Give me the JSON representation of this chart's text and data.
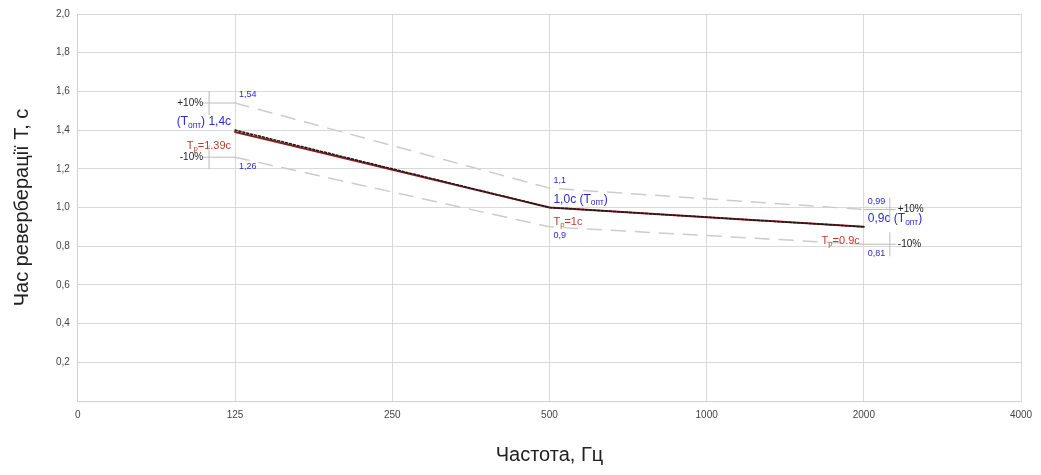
{
  "chart_data": {
    "type": "line",
    "xlabel": "Частота, Гц",
    "ylabel": "Час реверберації T, с",
    "categories": [
      "0",
      "125",
      "250",
      "500",
      "1000",
      "2000",
      "4000"
    ],
    "series": [
      {
        "color": "#8b1a1a",
        "values": [
          null,
          1.39,
          null,
          1,
          null,
          0.9,
          null
        ],
        "value_labels": [
          null,
          "T$_{р}$=1.39с",
          null,
          "T$_{р}$=1с",
          null,
          "T$_{р}$=0.9с",
          null
        ]
      },
      {
        "color": "#1a1a1a",
        "line_style": "dotted",
        "values": [
          null,
          1.4,
          null,
          1.0,
          null,
          0.9,
          null
        ],
        "value_labels": [
          null,
          "(T$_{опт}$) 1,4с",
          null,
          "1,0с (T$_{опт}$)",
          null,
          "0,9с (T$_{опт}$)",
          null
        ]
      },
      {
        "color": "#cccccc",
        "line_style": "dashed",
        "values": [
          null,
          1.54,
          null,
          1.1,
          null,
          0.99,
          null
        ],
        "value_labels": [
          null,
          "1,54",
          null,
          "1,1",
          null,
          "0,99",
          null
        ]
      },
      {
        "color": "#cccccc",
        "line_style": "dashed",
        "values": [
          null,
          1.26,
          null,
          0.9,
          null,
          0.81,
          null
        ],
        "value_labels": [
          null,
          "1,26",
          null,
          "0,9",
          null,
          "0,81",
          null
        ]
      }
    ],
    "annotations": [
      {
        "text": "+10%",
        "x": "125",
        "y": 1.54
      },
      {
        "text": "-10%",
        "x": "125",
        "y": 1.26
      },
      {
        "text": "+10%",
        "x": "2000",
        "y": 0.99
      },
      {
        "text": "-10%",
        "x": "2000",
        "y": 0.81
      }
    ],
    "ylim": [
      0,
      2
    ],
    "yticks": [
      {
        "value": 0,
        "label": null
      },
      {
        "value": 0.2,
        "label": "0,2"
      },
      {
        "value": 0.4,
        "label": "0,4"
      },
      {
        "value": 0.6,
        "label": "0,6"
      },
      {
        "value": 0.8,
        "label": "0,8"
      },
      {
        "value": 1,
        "label": "1,0"
      },
      {
        "value": 1.2,
        "label": "1,2"
      },
      {
        "value": 1.4,
        "label": "1,4"
      },
      {
        "value": 1.6,
        "label": "1,6"
      },
      {
        "value": 1.8,
        "label": "1,8"
      },
      {
        "value": 2,
        "label": "2,0"
      }
    ],
    "grid": true,
    "legend": false,
    "marker": "none"
  }
}
